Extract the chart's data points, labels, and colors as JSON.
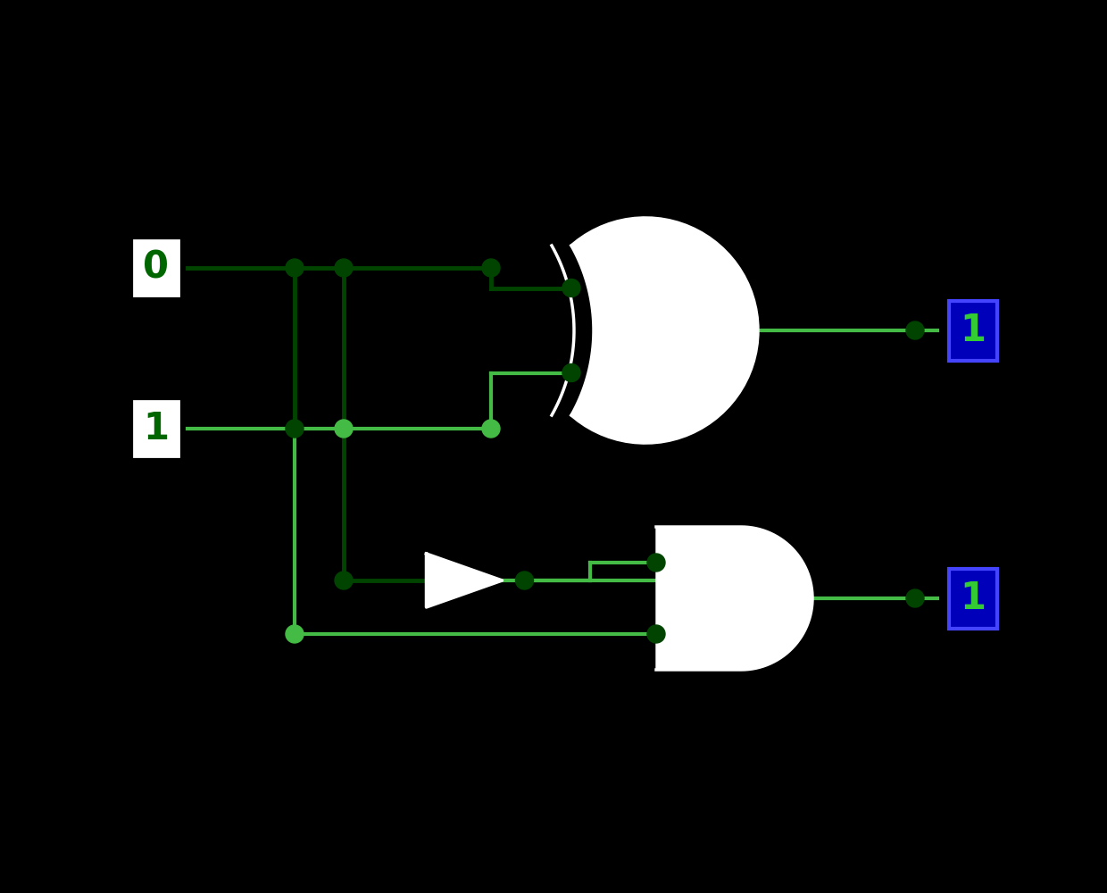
{
  "bg_color": "#000000",
  "wire_dark": "#004400",
  "wire_light": "#44BB44",
  "gate_fill": "#ffffff",
  "gate_edge": "#ffffff",
  "dot_dark": "#005500",
  "dot_light": "#44BB44",
  "input_text_color": "#006600",
  "output_text_color": "#33CC33",
  "output_box_color": "#0000BB",
  "output_box_edge": "#4444FF",
  "figsize": [
    12.4,
    10.0
  ],
  "dpi": 100,
  "input_A": "0",
  "input_B": "1",
  "output_diff": "1",
  "output_borrow": "1"
}
